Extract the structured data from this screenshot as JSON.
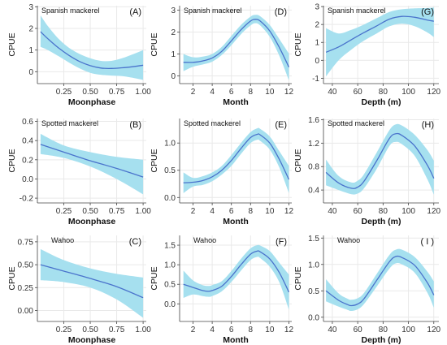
{
  "colors": {
    "band": "#a6e0ef",
    "line": "#4a73cc",
    "grid": "#e9e9e9",
    "axis": "#444444"
  },
  "chart_data": [
    {
      "type": "line",
      "panel": "(A)",
      "species": "Spanish mackerel",
      "xlabel": "Moonphase",
      "ylabel": "CPUE",
      "xlim": [
        0.0,
        1.03
      ],
      "ylim": [
        -0.55,
        3.05
      ],
      "xticks": [
        0.25,
        0.5,
        0.75,
        1.0
      ],
      "xtick_labels": [
        "0.25",
        "0.50",
        "0.75",
        "1.00"
      ],
      "yticks": [
        0,
        1,
        2,
        3
      ],
      "ytick_labels": [
        "0",
        "1",
        "2",
        "3"
      ],
      "x": [
        0.03,
        0.1,
        0.2,
        0.3,
        0.4,
        0.5,
        0.6,
        0.7,
        0.8,
        0.9,
        1.0
      ],
      "y": [
        1.85,
        1.52,
        1.1,
        0.75,
        0.47,
        0.28,
        0.17,
        0.15,
        0.18,
        0.23,
        0.3
      ],
      "lower": [
        1.15,
        1.0,
        0.72,
        0.42,
        0.15,
        -0.05,
        -0.14,
        -0.18,
        -0.2,
        -0.28,
        -0.38
      ],
      "upper": [
        2.6,
        2.1,
        1.52,
        1.1,
        0.82,
        0.62,
        0.5,
        0.5,
        0.62,
        0.8,
        1.0
      ]
    },
    {
      "type": "line",
      "panel": "(D)",
      "species": "Spanish mackerel",
      "xlabel": "Month",
      "ylabel": "CPUE",
      "xlim": [
        0.6,
        12.3
      ],
      "ylim": [
        -0.35,
        3.2
      ],
      "xticks": [
        2,
        4,
        6,
        8,
        10,
        12
      ],
      "xtick_labels": [
        "2",
        "4",
        "6",
        "8",
        "10",
        "12"
      ],
      "yticks": [
        0,
        1,
        2,
        3
      ],
      "ytick_labels": [
        "0",
        "1",
        "2",
        "3"
      ],
      "x": [
        1,
        2,
        3,
        4,
        5,
        6,
        7,
        8,
        8.5,
        9,
        10,
        11,
        12
      ],
      "y": [
        0.62,
        0.62,
        0.68,
        0.82,
        1.12,
        1.6,
        2.1,
        2.5,
        2.58,
        2.5,
        2.05,
        1.3,
        0.4
      ],
      "lower": [
        0.22,
        0.42,
        0.52,
        0.65,
        0.95,
        1.4,
        1.9,
        2.3,
        2.4,
        2.3,
        1.78,
        0.92,
        -0.2
      ],
      "upper": [
        1.0,
        0.85,
        0.88,
        1.0,
        1.32,
        1.82,
        2.32,
        2.7,
        2.78,
        2.72,
        2.32,
        1.68,
        1.02
      ]
    },
    {
      "type": "line",
      "panel": "(G)",
      "species": "Spanish mackerel",
      "xlabel": "Depth (m)",
      "ylabel": "CPUE",
      "xlim": [
        33,
        124
      ],
      "ylim": [
        -1.3,
        3.05
      ],
      "xticks": [
        40,
        60,
        80,
        100,
        120
      ],
      "xtick_labels": [
        "40",
        "60",
        "80",
        "100",
        "120"
      ],
      "yticks": [
        -1,
        0,
        1,
        2,
        3
      ],
      "ytick_labels": [
        "-1",
        "0",
        "1",
        "2",
        "3"
      ],
      "x": [
        35,
        45,
        55,
        65,
        75,
        85,
        95,
        105,
        115,
        120
      ],
      "y": [
        0.45,
        0.75,
        1.15,
        1.55,
        1.92,
        2.3,
        2.45,
        2.4,
        2.25,
        2.18
      ],
      "lower": [
        -0.9,
        0.0,
        0.6,
        1.1,
        1.5,
        1.9,
        2.05,
        1.9,
        1.55,
        1.3
      ],
      "upper": [
        1.8,
        1.5,
        1.7,
        2.0,
        2.35,
        2.7,
        2.85,
        2.9,
        2.92,
        2.95
      ]
    },
    {
      "type": "line",
      "panel": "(B)",
      "species": "Spotted mackerel",
      "xlabel": "Moonphase",
      "ylabel": "CPUE",
      "xlim": [
        0.0,
        1.03
      ],
      "ylim": [
        -0.25,
        0.63
      ],
      "xticks": [
        0.25,
        0.5,
        0.75,
        1.0
      ],
      "xtick_labels": [
        "0.25",
        "0.50",
        "0.75",
        "1.00"
      ],
      "yticks": [
        -0.2,
        0.0,
        0.2,
        0.4,
        0.6
      ],
      "ytick_labels": [
        "-0.2",
        "0.0",
        "0.2",
        "0.4",
        "0.6"
      ],
      "x": [
        0.03,
        0.25,
        0.5,
        0.75,
        1.0
      ],
      "y": [
        0.36,
        0.28,
        0.19,
        0.11,
        0.02
      ],
      "lower": [
        0.26,
        0.22,
        0.13,
        0.0,
        -0.16
      ],
      "upper": [
        0.47,
        0.35,
        0.28,
        0.23,
        0.2
      ]
    },
    {
      "type": "line",
      "panel": "(E)",
      "species": "Spotted mackerel",
      "xlabel": "Month",
      "ylabel": "CPUE",
      "xlim": [
        0.6,
        12.3
      ],
      "ylim": [
        -0.1,
        1.45
      ],
      "xticks": [
        2,
        4,
        6,
        8,
        10,
        12
      ],
      "xtick_labels": [
        "2",
        "4",
        "6",
        "8",
        "10",
        "12"
      ],
      "yticks": [
        0.0,
        0.5,
        1.0
      ],
      "ytick_labels": [
        "0.0",
        "0.5",
        "1.0"
      ],
      "x": [
        1,
        2,
        3,
        4,
        5,
        6,
        7,
        8,
        8.7,
        9,
        10,
        11,
        12
      ],
      "y": [
        0.27,
        0.28,
        0.31,
        0.38,
        0.5,
        0.68,
        0.9,
        1.1,
        1.16,
        1.15,
        1.0,
        0.7,
        0.33
      ],
      "lower": [
        0.08,
        0.2,
        0.23,
        0.3,
        0.42,
        0.58,
        0.8,
        1.0,
        1.06,
        1.04,
        0.88,
        0.55,
        0.08
      ],
      "upper": [
        0.46,
        0.36,
        0.39,
        0.46,
        0.58,
        0.78,
        1.0,
        1.2,
        1.27,
        1.26,
        1.12,
        0.85,
        0.58
      ]
    },
    {
      "type": "line",
      "panel": "(H)",
      "species": "Spotted mackerel",
      "xlabel": "Depth (m)",
      "ylabel": "CPUE",
      "xlim": [
        33,
        124
      ],
      "ylim": [
        0.18,
        1.62
      ],
      "xticks": [
        40,
        60,
        80,
        100,
        120
      ],
      "xtick_labels": [
        "40",
        "60",
        "80",
        "100",
        "120"
      ],
      "yticks": [
        0.4,
        0.8,
        1.2,
        1.6
      ],
      "ytick_labels": [
        "0.4",
        "0.8",
        "1.2",
        "1.6"
      ],
      "x": [
        35,
        45,
        55,
        60,
        65,
        75,
        85,
        90,
        95,
        105,
        115,
        120
      ],
      "y": [
        0.7,
        0.52,
        0.43,
        0.45,
        0.55,
        0.9,
        1.28,
        1.36,
        1.33,
        1.15,
        0.82,
        0.6
      ],
      "lower": [
        0.48,
        0.4,
        0.33,
        0.34,
        0.43,
        0.76,
        1.15,
        1.22,
        1.18,
        0.98,
        0.58,
        0.32
      ],
      "upper": [
        0.92,
        0.64,
        0.53,
        0.56,
        0.67,
        1.04,
        1.42,
        1.52,
        1.5,
        1.34,
        1.08,
        0.9
      ]
    },
    {
      "type": "line",
      "panel": "(C)",
      "species": "Wahoo",
      "xlabel": "Moonphase",
      "ylabel": "CPUE",
      "xlim": [
        0.0,
        1.03
      ],
      "ylim": [
        -0.12,
        0.82
      ],
      "xticks": [
        0.25,
        0.5,
        0.75,
        1.0
      ],
      "xtick_labels": [
        "0.25",
        "0.50",
        "0.75",
        "1.00"
      ],
      "yticks": [
        0.0,
        0.25,
        0.5,
        0.75
      ],
      "ytick_labels": [
        "0.00",
        "0.25",
        "0.50",
        "0.75"
      ],
      "x": [
        0.03,
        0.25,
        0.5,
        0.75,
        1.0
      ],
      "y": [
        0.5,
        0.43,
        0.35,
        0.26,
        0.14
      ],
      "lower": [
        0.33,
        0.31,
        0.25,
        0.12,
        -0.08
      ],
      "upper": [
        0.67,
        0.55,
        0.46,
        0.4,
        0.36
      ]
    },
    {
      "type": "line",
      "panel": "(F)",
      "species": "Wahoo",
      "xlabel": "Month",
      "ylabel": "CPUE",
      "xlim": [
        0.6,
        12.3
      ],
      "ylim": [
        -0.45,
        1.75
      ],
      "xticks": [
        2,
        4,
        6,
        8,
        10,
        12
      ],
      "xtick_labels": [
        "2",
        "4",
        "6",
        "8",
        "10",
        "12"
      ],
      "yticks": [
        0.0,
        0.5,
        1.0,
        1.5
      ],
      "ytick_labels": [
        "0.0",
        "0.5",
        "1.0",
        "1.5"
      ],
      "x": [
        1,
        2,
        3,
        3.6,
        4,
        5,
        6,
        7,
        8,
        8.7,
        9,
        10,
        11,
        12
      ],
      "y": [
        0.5,
        0.42,
        0.34,
        0.32,
        0.34,
        0.45,
        0.7,
        1.0,
        1.27,
        1.35,
        1.33,
        1.15,
        0.8,
        0.3
      ],
      "lower": [
        0.15,
        0.24,
        0.2,
        0.18,
        0.2,
        0.32,
        0.56,
        0.85,
        1.12,
        1.2,
        1.17,
        0.95,
        0.55,
        -0.15
      ],
      "upper": [
        0.85,
        0.6,
        0.48,
        0.46,
        0.48,
        0.58,
        0.84,
        1.15,
        1.42,
        1.5,
        1.49,
        1.35,
        1.05,
        0.75
      ]
    },
    {
      "type": "line",
      "panel": "( I )",
      "species": "Wahoo",
      "xlabel": "Depth (m)",
      "ylabel": "CPUE",
      "xlim": [
        33,
        124
      ],
      "ylim": [
        -0.08,
        1.55
      ],
      "xticks": [
        40,
        60,
        80,
        100,
        120
      ],
      "xtick_labels": [
        "40",
        "60",
        "80",
        "100",
        "120"
      ],
      "yticks": [
        0.0,
        0.5,
        1.0,
        1.5
      ],
      "ytick_labels": [
        "0.0",
        "0.5",
        "1.0",
        "1.5"
      ],
      "x": [
        35,
        45,
        52,
        55,
        60,
        65,
        75,
        85,
        90,
        95,
        105,
        115,
        120
      ],
      "y": [
        0.5,
        0.32,
        0.24,
        0.22,
        0.25,
        0.35,
        0.7,
        1.05,
        1.15,
        1.13,
        0.98,
        0.65,
        0.42
      ],
      "lower": [
        0.3,
        0.2,
        0.14,
        0.12,
        0.15,
        0.25,
        0.58,
        0.92,
        1.02,
        1.0,
        0.84,
        0.46,
        0.18
      ],
      "upper": [
        0.72,
        0.45,
        0.35,
        0.33,
        0.36,
        0.46,
        0.82,
        1.18,
        1.28,
        1.28,
        1.14,
        0.86,
        0.68
      ]
    }
  ]
}
